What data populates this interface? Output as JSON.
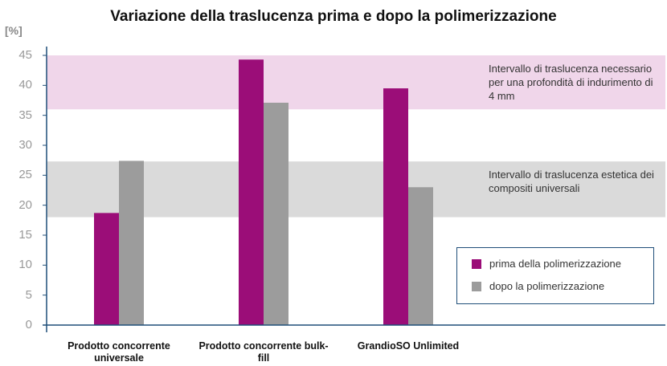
{
  "chart_data": {
    "type": "bar",
    "title": "Variazione della traslucenza prima e dopo la polimerizzazione",
    "y_label": "[%]",
    "categories": [
      "Prodotto concorrente universale",
      "Prodotto concorrente bulk-fill",
      "GrandioSO Unlimited"
    ],
    "series": [
      {
        "name": "prima della polimerizzazione",
        "color": "#9b0d78",
        "values": [
          18.7,
          44.3,
          39.5
        ]
      },
      {
        "name": "dopo la polimerizzazione",
        "color": "#9c9c9c",
        "values": [
          27.4,
          37.1,
          23.0
        ]
      }
    ],
    "bands": [
      {
        "label": "Intervallo di traslucenza necessario per una profondità di indurimento di 4 mm",
        "range": [
          36,
          45
        ],
        "color": "#f0d6ea"
      },
      {
        "label": "Intervallo di traslucenza estetica dei compositi universali",
        "range": [
          18,
          27.3
        ],
        "color": "#dadada"
      }
    ],
    "ylim": [
      0,
      45
    ],
    "yticks": [
      0,
      5,
      10,
      15,
      20,
      25,
      30,
      35,
      40,
      45
    ],
    "legend": "lower right"
  }
}
